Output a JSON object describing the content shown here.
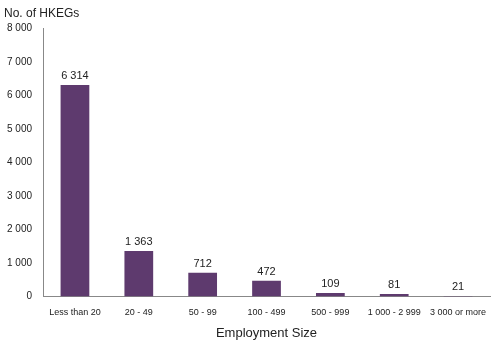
{
  "chart_data": {
    "type": "bar",
    "y_label": "No. of HKEGs",
    "x_label": "Employment Size",
    "categories": [
      "Less than 20",
      "20 - 49",
      "50 - 99",
      "100 - 499",
      "500 - 999",
      "1 000 - 2 999",
      "3 000 or more"
    ],
    "values": [
      6314,
      1363,
      712,
      472,
      109,
      81,
      21
    ],
    "value_labels": [
      "6 314",
      "1 363",
      "712",
      "472",
      "109",
      "81",
      "21"
    ],
    "color": "#5e3a6e",
    "ylim": [
      0,
      8000
    ],
    "yticks": [
      0,
      {
        "value": 1000,
        "label": "1 000"
      },
      {
        "value": 2000,
        "label": "2 000"
      },
      {
        "value": 3000,
        "label": "3 000"
      },
      {
        "value": 4000,
        "label": "4 000"
      },
      {
        "value": 5000,
        "label": "5 000"
      },
      {
        "value": 6000,
        "label": "6 000"
      },
      {
        "value": 7000,
        "label": "7 000"
      },
      {
        "value": 8000,
        "label": "8 000"
      }
    ],
    "grid": false,
    "data_labels": true
  }
}
